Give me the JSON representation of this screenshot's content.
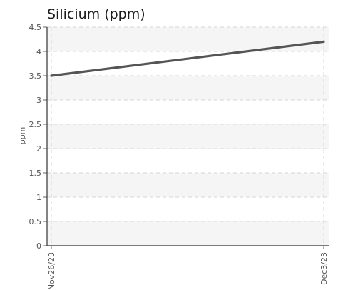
{
  "chart_data": {
    "type": "line",
    "title": "Silicium (ppm)",
    "ylabel": "ppm",
    "xlabel": "",
    "ylim": [
      0,
      4.5
    ],
    "yticks": [
      0,
      0.5,
      1,
      1.5,
      2,
      2.5,
      3,
      3.5,
      4,
      4.5
    ],
    "yticklabels": [
      "0",
      "0.5",
      "1",
      "1.5",
      "2",
      "2.5",
      "3",
      "3.5",
      "4",
      "4.5"
    ],
    "categories": [
      "Nov26/23",
      "Dec3/23"
    ],
    "series": [
      {
        "values": [
          3.5,
          4.2
        ],
        "color": "#555555"
      }
    ],
    "grid": true,
    "legend": "none"
  }
}
